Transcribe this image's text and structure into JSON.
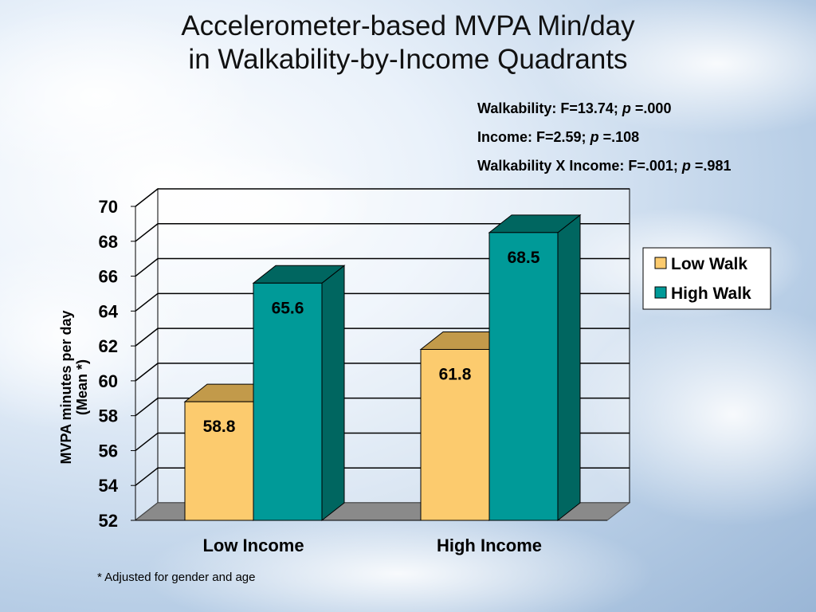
{
  "title_line1": "Accelerometer-based MVPA Min/day",
  "title_line2": "in Walkability-by-Income Quadrants",
  "stats": [
    {
      "label": "Walkability:  F=13.74; ",
      "p": "p",
      "rest": " =.000"
    },
    {
      "label": "Income:  F=2.59; ",
      "p": "p",
      "rest": " =.108"
    },
    {
      "label": "Walkability X Income:  F=.001; ",
      "p": "p",
      "rest": " =.981"
    }
  ],
  "footnote": "* Adjusted for gender and age",
  "colors": {
    "low_walk_front": "#FCCB6E",
    "low_walk_side": "#C29A4A",
    "high_walk_front": "#009A98",
    "high_walk_side": "#006660",
    "floor": "#8A8A8A"
  },
  "chart_data": {
    "type": "bar",
    "categories": [
      "Low Income",
      "High Income"
    ],
    "series": [
      {
        "name": "Low Walk",
        "values": [
          58.8,
          61.8
        ]
      },
      {
        "name": "High Walk",
        "values": [
          65.6,
          68.5
        ]
      }
    ],
    "data_labels": [
      "58.8",
      "61.8",
      "65.6",
      "68.5"
    ],
    "ylabel_line1": "MVPA minutes per day",
    "ylabel_line2": "(Mean *)",
    "ylim": [
      52,
      70
    ],
    "yticks": [
      52,
      54,
      56,
      58,
      60,
      62,
      64,
      66,
      68,
      70
    ],
    "grid": true,
    "legend": "right"
  }
}
